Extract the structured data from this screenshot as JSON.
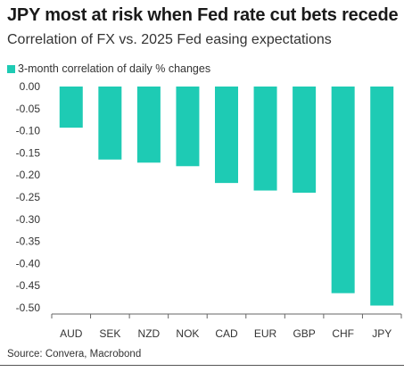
{
  "title": "JPY most at risk when Fed rate cut bets recede",
  "subtitle": "Correlation of FX vs. 2025 Fed easing expectations",
  "source": "Source: Convera, Macrobond",
  "colors": {
    "bar": "#1ecbb4",
    "axis": "#666666",
    "text": "#333333"
  },
  "chart_data": {
    "type": "bar",
    "categories": [
      "AUD",
      "SEK",
      "NZD",
      "NOK",
      "CAD",
      "EUR",
      "GBP",
      "CHF",
      "JPY"
    ],
    "series": [
      {
        "name": "3-month correlation of daily % changes",
        "values": [
          -0.093,
          -0.165,
          -0.172,
          -0.18,
          -0.218,
          -0.235,
          -0.24,
          -0.467,
          -0.495
        ]
      }
    ],
    "yticks": [
      "0.00",
      "-0.05",
      "-0.10",
      "-0.15",
      "-0.20",
      "-0.25",
      "-0.30",
      "-0.35",
      "-0.40",
      "-0.45",
      "-0.50"
    ],
    "ylim": [
      -0.5,
      0
    ],
    "grid": false,
    "legend_position": "top-left"
  }
}
